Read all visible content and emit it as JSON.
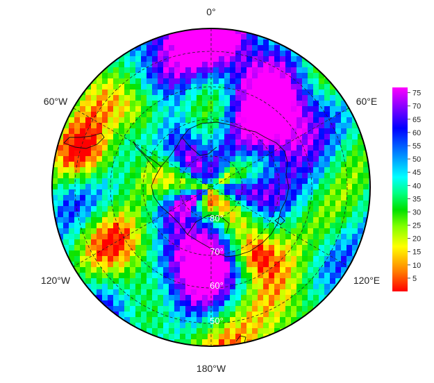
{
  "map": {
    "projection": "south-polar-stereographic",
    "longitude_labels": {
      "top": "0°",
      "top_left": "60°W",
      "top_right": "60°E",
      "bottom_left": "120°W",
      "bottom_right": "120°E",
      "bottom": "180°W"
    },
    "latitude_labels": [
      "80°",
      "70°",
      "60°",
      "50°"
    ],
    "colors": {
      "frame": "#000000",
      "grid": "#222222",
      "coast": "#111111"
    }
  },
  "colorbar": {
    "ticks": [
      "5",
      "10",
      "15",
      "20",
      "25",
      "30",
      "35",
      "40",
      "45",
      "50",
      "55",
      "60",
      "65",
      "70",
      "75"
    ],
    "min": 0,
    "max": 77,
    "stops": [
      "#ff0000",
      "#ff8000",
      "#ffff00",
      "#80ff00",
      "#00e000",
      "#00ff80",
      "#00ffff",
      "#0080ff",
      "#0000ff",
      "#8000ff",
      "#ff00ff"
    ]
  }
}
